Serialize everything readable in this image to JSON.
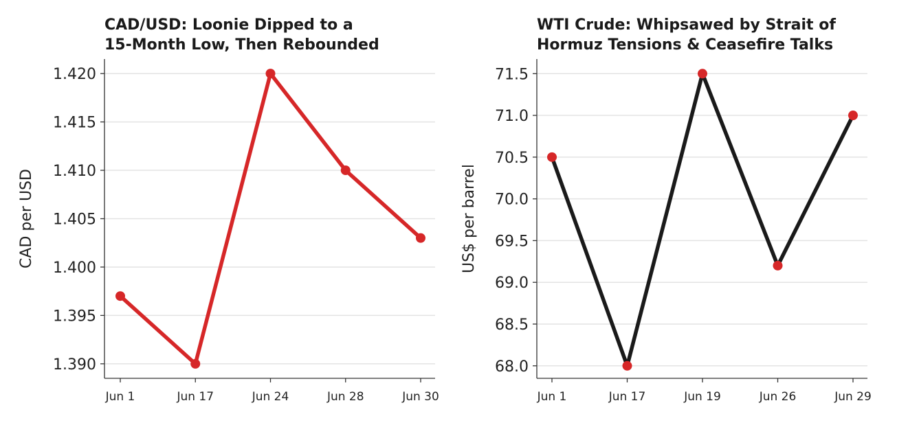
{
  "chart_data": [
    {
      "type": "line",
      "title": "CAD/USD: Loonie Dipped to a\n15-Month Low, Then Rebounded",
      "xlabel": "",
      "ylabel": "CAD per USD",
      "categories": [
        "Jun 1",
        "Jun 17",
        "Jun 24",
        "Jun 28",
        "Jun 30"
      ],
      "values": [
        1.397,
        1.39,
        1.42,
        1.41,
        1.403
      ],
      "yticks": [
        "1.390",
        "1.395",
        "1.400",
        "1.405",
        "1.410",
        "1.415",
        "1.420"
      ],
      "ylim": [
        1.3885,
        1.4215
      ],
      "grid": "horizontal",
      "line_color": "#d62728",
      "marker_color": "#d62728"
    },
    {
      "type": "line",
      "title": "WTI Crude: Whipsawed by Strait of\nHormuz Tensions & Ceasefire Talks",
      "xlabel": "",
      "ylabel": "US$ per barrel",
      "categories": [
        "Jun 1",
        "Jun 17",
        "Jun 19",
        "Jun 26",
        "Jun 29"
      ],
      "values": [
        70.5,
        68.0,
        71.5,
        69.2,
        71.0
      ],
      "yticks": [
        "68.0",
        "68.5",
        "69.0",
        "69.5",
        "70.0",
        "70.5",
        "71.0",
        "71.5"
      ],
      "ylim": [
        67.85,
        71.675
      ],
      "grid": "horizontal",
      "line_color": "#1a1a1a",
      "marker_color": "#d62728"
    }
  ]
}
